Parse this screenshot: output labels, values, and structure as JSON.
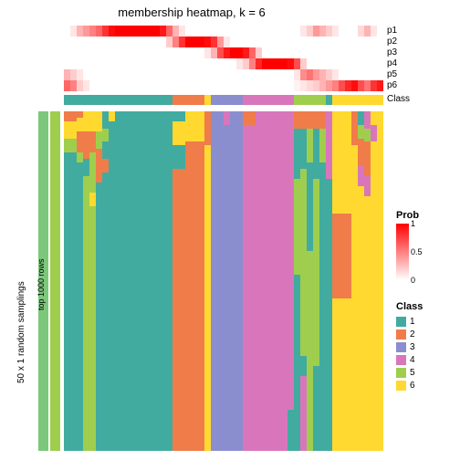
{
  "title": "membership heatmap, k = 6",
  "background_color": "#ffffff",
  "prob_gradient": {
    "low": "#ffffff",
    "high": "#ff0000",
    "ticks": [
      "1",
      "0.5",
      "0"
    ]
  },
  "class_colors": {
    "1": "#41ab9f",
    "2": "#f07c4a",
    "3": "#8a8ecf",
    "4": "#d976bb",
    "5": "#9fce4e",
    "6": "#ffd92f"
  },
  "sampling_bar_color": "#7bc87b",
  "rows_bar_color": "#9fce4e",
  "prob_row_labels": [
    "p1",
    "p2",
    "p3",
    "p4",
    "p5",
    "p6"
  ],
  "class_bar_label": "Class",
  "side_labels": {
    "sampling": "50 x 1 random samplings",
    "rows": "top 1000 rows"
  },
  "legend_headers": {
    "prob": "Prob",
    "class": "Class"
  },
  "class_legend_items": [
    "1",
    "2",
    "3",
    "4",
    "5",
    "6"
  ],
  "n_cols": 50,
  "prob_rows": [
    [
      0,
      0.1,
      0.3,
      0.4,
      0.5,
      0.6,
      0.8,
      0.95,
      1,
      1,
      1,
      1,
      1,
      1,
      1,
      0.9,
      0.6,
      0.3,
      0.1,
      0,
      0,
      0,
      0,
      0,
      0,
      0,
      0,
      0,
      0,
      0,
      0,
      0,
      0,
      0,
      0,
      0,
      0,
      0.1,
      0.2,
      0.4,
      0.3,
      0.2,
      0.1,
      0,
      0,
      0,
      0.15,
      0.3,
      0.1,
      0
    ],
    [
      0,
      0,
      0,
      0,
      0,
      0,
      0,
      0,
      0,
      0,
      0,
      0,
      0,
      0,
      0,
      0,
      0.2,
      0.5,
      0.8,
      1,
      1,
      1,
      0.95,
      0.8,
      0.4,
      0.1,
      0,
      0,
      0,
      0,
      0,
      0,
      0,
      0,
      0,
      0,
      0,
      0,
      0,
      0,
      0,
      0,
      0,
      0,
      0,
      0,
      0,
      0,
      0,
      0
    ],
    [
      0,
      0,
      0,
      0,
      0,
      0,
      0,
      0,
      0,
      0,
      0,
      0,
      0,
      0,
      0,
      0,
      0,
      0,
      0,
      0,
      0,
      0,
      0.1,
      0.3,
      0.7,
      0.9,
      1,
      1,
      0.9,
      0.6,
      0.2,
      0,
      0,
      0,
      0,
      0,
      0,
      0,
      0,
      0,
      0,
      0,
      0,
      0,
      0,
      0,
      0,
      0,
      0,
      0
    ],
    [
      0,
      0,
      0,
      0,
      0,
      0,
      0,
      0,
      0,
      0,
      0,
      0,
      0,
      0,
      0,
      0,
      0,
      0,
      0,
      0,
      0,
      0,
      0,
      0,
      0,
      0,
      0,
      0.1,
      0.2,
      0.5,
      0.85,
      1,
      1,
      1,
      1,
      0.95,
      0.7,
      0.2,
      0,
      0,
      0,
      0,
      0,
      0,
      0,
      0,
      0,
      0,
      0,
      0
    ],
    [
      0.3,
      0.2,
      0.1,
      0,
      0,
      0,
      0,
      0,
      0,
      0,
      0,
      0,
      0,
      0,
      0,
      0,
      0,
      0,
      0,
      0,
      0,
      0,
      0,
      0,
      0,
      0,
      0,
      0,
      0,
      0,
      0,
      0,
      0,
      0,
      0,
      0,
      0.1,
      0.45,
      0.55,
      0.4,
      0.3,
      0.2,
      0.1,
      0,
      0,
      0,
      0,
      0,
      0,
      0
    ],
    [
      0.6,
      0.5,
      0.2,
      0.1,
      0,
      0,
      0,
      0,
      0,
      0,
      0,
      0,
      0,
      0,
      0,
      0,
      0,
      0,
      0,
      0,
      0,
      0,
      0,
      0,
      0,
      0,
      0,
      0,
      0,
      0,
      0,
      0,
      0,
      0,
      0,
      0,
      0.05,
      0.1,
      0.15,
      0.2,
      0.3,
      0.4,
      0.5,
      0.7,
      0.85,
      0.95,
      0.7,
      0.55,
      0.8,
      0.9
    ]
  ],
  "class_bar": [
    "1",
    "1",
    "1",
    "1",
    "1",
    "1",
    "1",
    "1",
    "1",
    "1",
    "1",
    "1",
    "1",
    "1",
    "1",
    "1",
    "1",
    "2",
    "2",
    "2",
    "2",
    "2",
    "6",
    "3",
    "3",
    "3",
    "3",
    "3",
    "4",
    "4",
    "4",
    "4",
    "4",
    "4",
    "4",
    "4",
    "5",
    "5",
    "5",
    "5",
    "5",
    "1",
    "6",
    "6",
    "6",
    "6",
    "6",
    "6",
    "6",
    "6"
  ],
  "col_widths": [
    1,
    1,
    1,
    1,
    1,
    1,
    1,
    1,
    1,
    1,
    1,
    1,
    1,
    1,
    1,
    1,
    1,
    1,
    1,
    1,
    1,
    1,
    1,
    1,
    1,
    1,
    1,
    1,
    1,
    1,
    1,
    1,
    1,
    1,
    1,
    1,
    1,
    1,
    1,
    1,
    1,
    1,
    1,
    1,
    1,
    1,
    1,
    1,
    1,
    1
  ],
  "main_columns": [
    [
      [
        "2",
        0.03
      ],
      [
        "6",
        0.05
      ],
      [
        "5",
        0.04
      ],
      [
        "1",
        0.88
      ]
    ],
    [
      [
        "2",
        0.03
      ],
      [
        "6",
        0.05
      ],
      [
        "5",
        0.04
      ],
      [
        "1",
        0.88
      ]
    ],
    [
      [
        "2",
        0.02
      ],
      [
        "6",
        0.04
      ],
      [
        "2",
        0.06
      ],
      [
        "5",
        0.03
      ],
      [
        "1",
        0.85
      ]
    ],
    [
      [
        "6",
        0.06
      ],
      [
        "2",
        0.08
      ],
      [
        "1",
        0.05
      ],
      [
        "5",
        0.81
      ]
    ],
    [
      [
        "6",
        0.06
      ],
      [
        "2",
        0.06
      ],
      [
        "5",
        0.12
      ],
      [
        "6",
        0.04
      ],
      [
        "5",
        0.72
      ]
    ],
    [
      [
        "6",
        0.06
      ],
      [
        "5",
        0.05
      ],
      [
        "2",
        0.1
      ],
      [
        "1",
        0.79
      ]
    ],
    [
      [
        "1",
        0.05
      ],
      [
        "5",
        0.04
      ],
      [
        "1",
        0.05
      ],
      [
        "2",
        0.04
      ],
      [
        "1",
        0.82
      ]
    ],
    [
      [
        "6",
        0.03
      ],
      [
        "1",
        1.0
      ]
    ],
    [
      [
        "1",
        1.0
      ]
    ],
    [
      [
        "1",
        1.0
      ]
    ],
    [
      [
        "1",
        1.0
      ]
    ],
    [
      [
        "1",
        1.0
      ]
    ],
    [
      [
        "1",
        1.0
      ]
    ],
    [
      [
        "1",
        1.0
      ]
    ],
    [
      [
        "1",
        1.0
      ]
    ],
    [
      [
        "1",
        1.0
      ]
    ],
    [
      [
        "1",
        1.0
      ]
    ],
    [
      [
        "1",
        0.03
      ],
      [
        "6",
        0.07
      ],
      [
        "1",
        0.07
      ],
      [
        "2",
        0.83
      ]
    ],
    [
      [
        "1",
        0.03
      ],
      [
        "6",
        0.07
      ],
      [
        "1",
        0.07
      ],
      [
        "2",
        0.83
      ]
    ],
    [
      [
        "6",
        0.09
      ],
      [
        "2",
        0.91
      ]
    ],
    [
      [
        "6",
        0.09
      ],
      [
        "2",
        0.91
      ]
    ],
    [
      [
        "6",
        0.09
      ],
      [
        "2",
        0.91
      ]
    ],
    [
      [
        "2",
        0.1
      ],
      [
        "6",
        0.9
      ]
    ],
    [
      [
        "3",
        1.0
      ]
    ],
    [
      [
        "3",
        1.0
      ]
    ],
    [
      [
        "4",
        0.04
      ],
      [
        "3",
        0.96
      ]
    ],
    [
      [
        "3",
        1.0
      ]
    ],
    [
      [
        "3",
        1.0
      ]
    ],
    [
      [
        "2",
        0.04
      ],
      [
        "4",
        0.96
      ]
    ],
    [
      [
        "2",
        0.04
      ],
      [
        "4",
        0.96
      ]
    ],
    [
      [
        "4",
        1.0
      ]
    ],
    [
      [
        "4",
        1.0
      ]
    ],
    [
      [
        "4",
        1.0
      ]
    ],
    [
      [
        "4",
        1.0
      ]
    ],
    [
      [
        "4",
        1.0
      ]
    ],
    [
      [
        "4",
        0.88
      ],
      [
        "1",
        0.12
      ]
    ],
    [
      [
        "2",
        0.05
      ],
      [
        "1",
        0.15
      ],
      [
        "5",
        0.28
      ],
      [
        "1",
        0.52
      ]
    ],
    [
      [
        "2",
        0.05
      ],
      [
        "1",
        0.12
      ],
      [
        "5",
        0.55
      ],
      [
        "1",
        0.06
      ],
      [
        "4",
        0.22
      ]
    ],
    [
      [
        "2",
        0.05
      ],
      [
        "5",
        0.1
      ],
      [
        "1",
        0.26
      ],
      [
        "5",
        0.59
      ]
    ],
    [
      [
        "2",
        0.05
      ],
      [
        "1",
        0.15
      ],
      [
        "5",
        0.55
      ],
      [
        "1",
        0.25
      ]
    ],
    [
      [
        "2",
        0.05
      ],
      [
        "5",
        0.1
      ],
      [
        "1",
        0.85
      ]
    ],
    [
      [
        "4",
        0.2
      ],
      [
        "1",
        0.8
      ]
    ],
    [
      [
        "6",
        0.3
      ],
      [
        "2",
        0.25
      ],
      [
        "6",
        0.45
      ]
    ],
    [
      [
        "6",
        0.3
      ],
      [
        "2",
        0.25
      ],
      [
        "6",
        0.45
      ]
    ],
    [
      [
        "6",
        0.3
      ],
      [
        "2",
        0.25
      ],
      [
        "6",
        0.45
      ]
    ],
    [
      [
        "2",
        0.1
      ],
      [
        "6",
        0.9
      ]
    ],
    [
      [
        "1",
        0.04
      ],
      [
        "5",
        0.04
      ],
      [
        "2",
        0.08
      ],
      [
        "4",
        0.06
      ],
      [
        "6",
        0.78
      ]
    ],
    [
      [
        "4",
        0.05
      ],
      [
        "5",
        0.04
      ],
      [
        "2",
        0.1
      ],
      [
        "4",
        0.06
      ],
      [
        "6",
        0.75
      ]
    ],
    [
      [
        "6",
        0.04
      ],
      [
        "4",
        0.05
      ],
      [
        "6",
        0.91
      ]
    ],
    [
      [
        "6",
        1.0
      ]
    ]
  ]
}
